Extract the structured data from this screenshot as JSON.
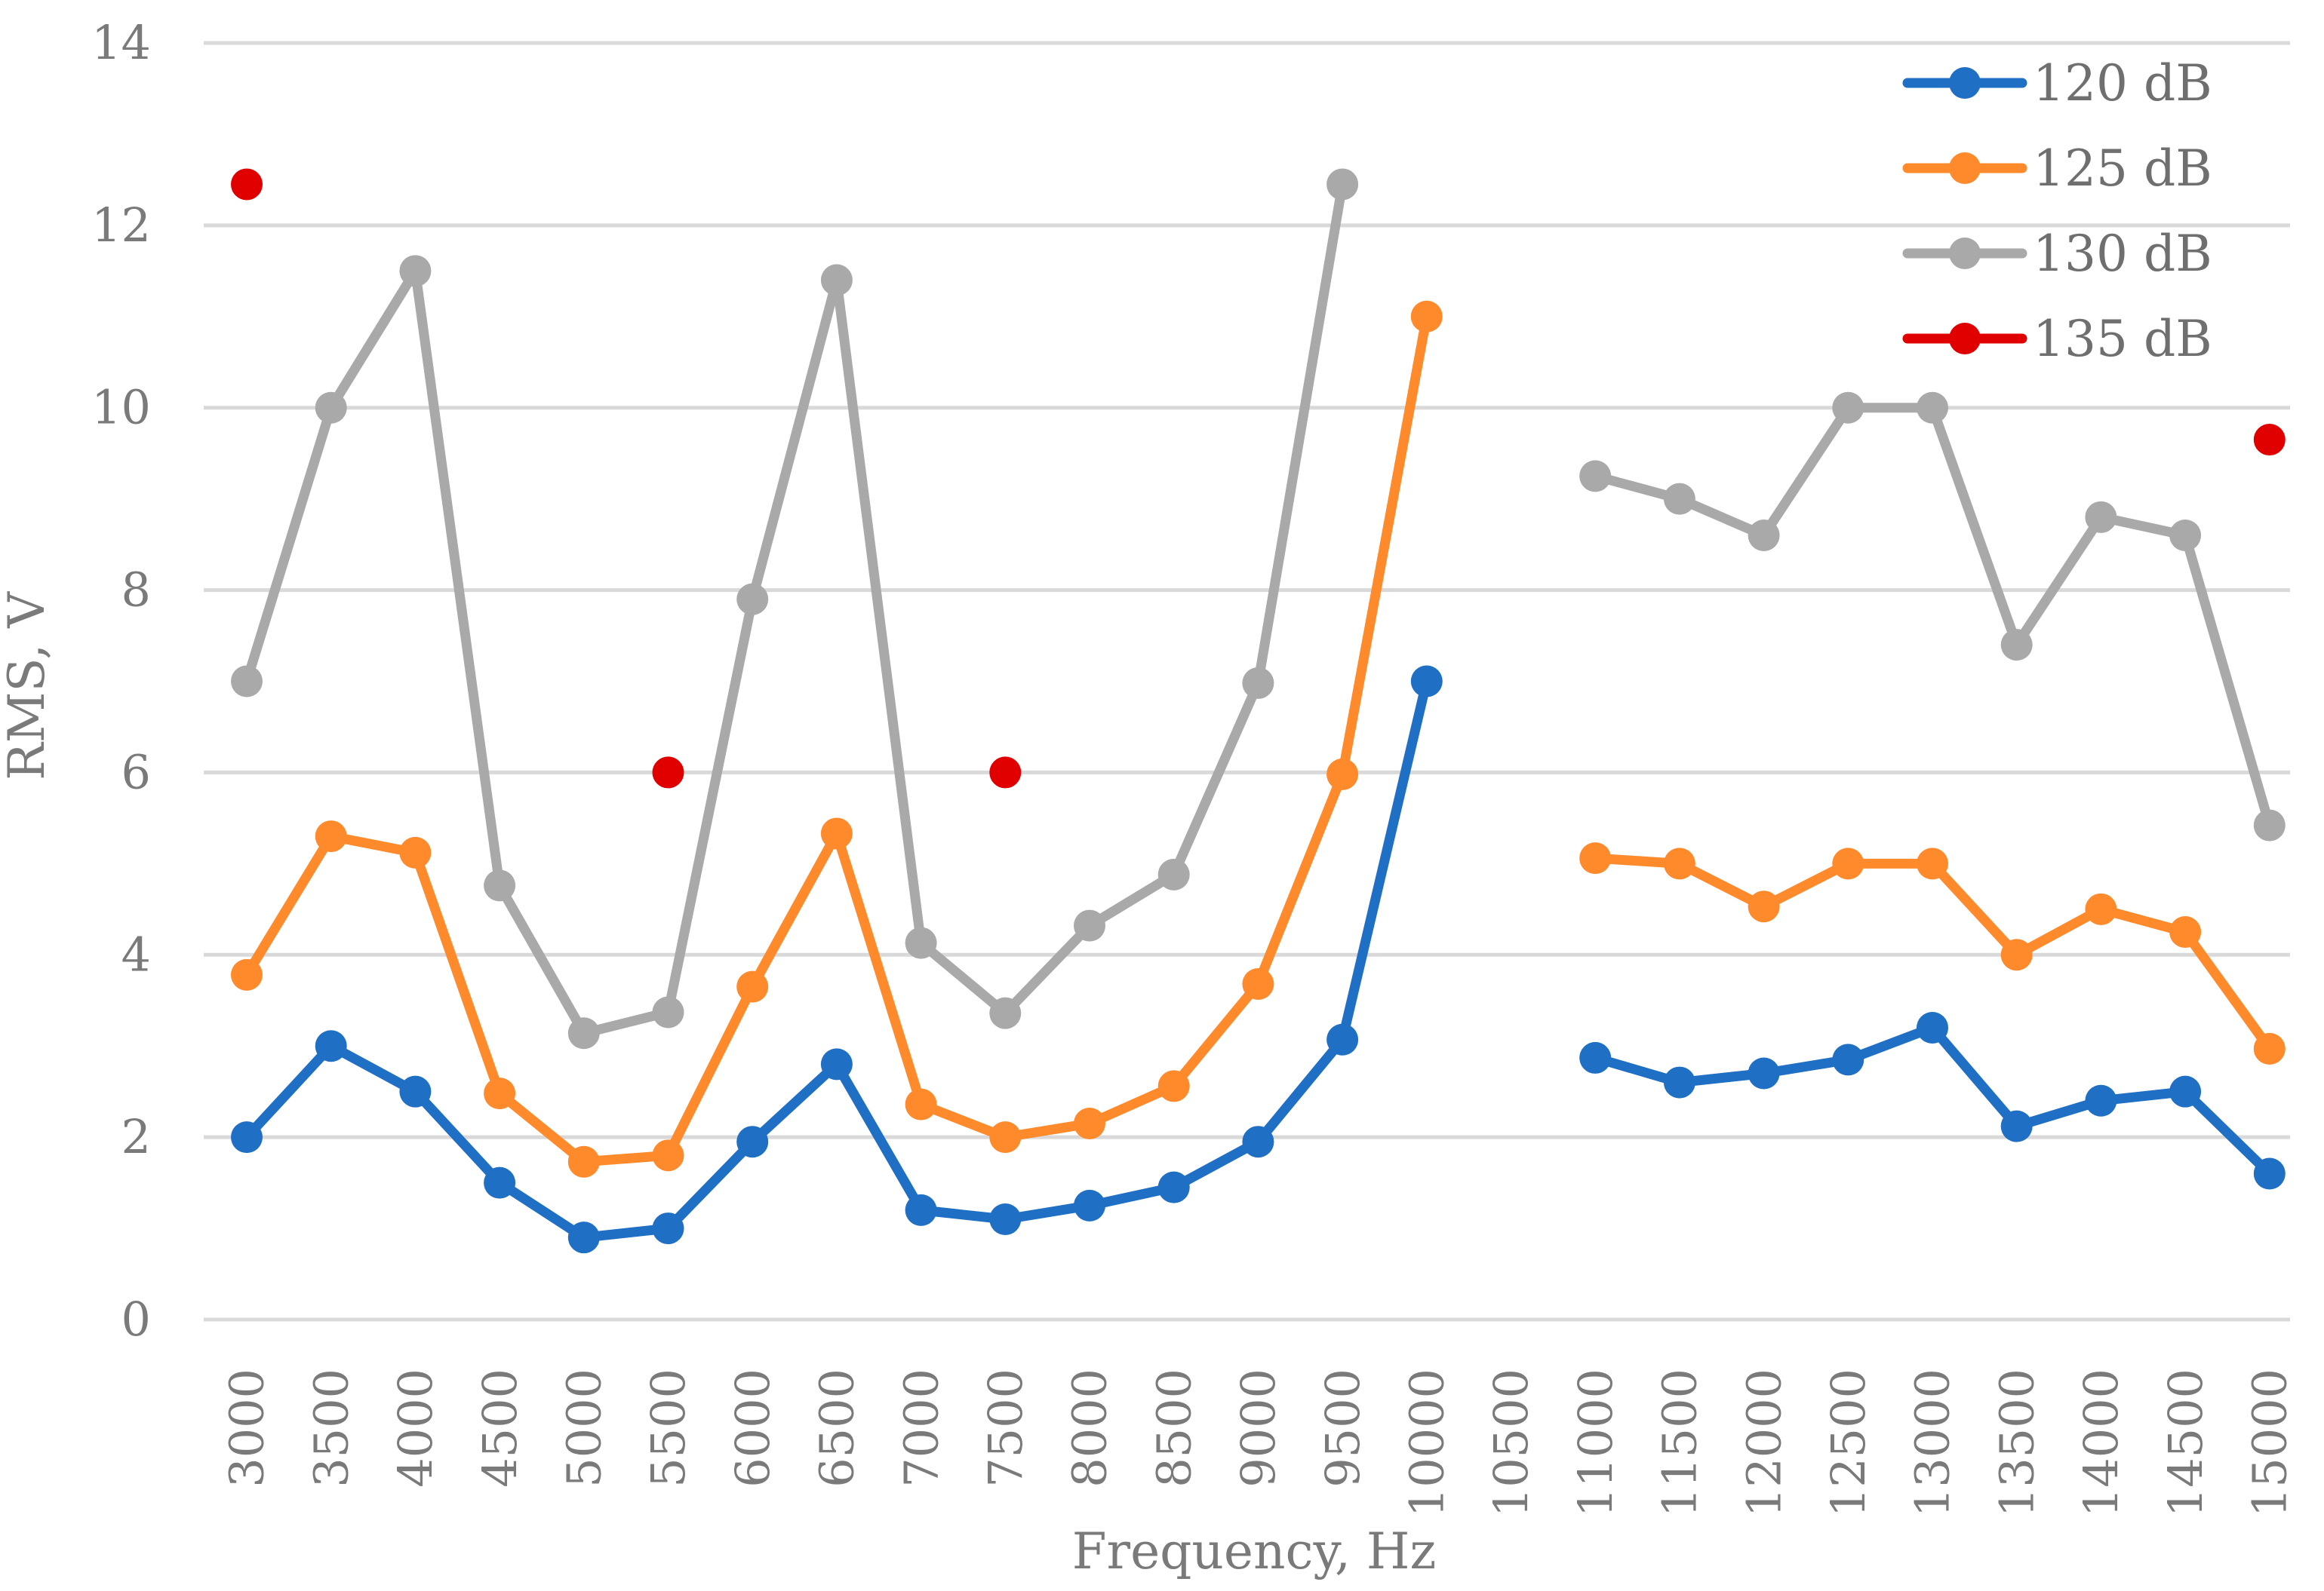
{
  "chart_data": {
    "type": "line",
    "title": "",
    "xlabel": "Frequency, Hz",
    "ylabel": "RMS, V",
    "ylim": [
      0,
      14
    ],
    "yticks": [
      0,
      2,
      4,
      6,
      8,
      10,
      12,
      14
    ],
    "grid": true,
    "legend_position": "top-right",
    "categories": [
      "3000",
      "3500",
      "4000",
      "4500",
      "5000",
      "5500",
      "6000",
      "6500",
      "7000",
      "7500",
      "8000",
      "8500",
      "9000",
      "9500",
      "10000",
      "10500",
      "11000",
      "11500",
      "12000",
      "12500",
      "13000",
      "13500",
      "14000",
      "14500",
      "15000"
    ],
    "series": [
      {
        "name": "120 dB",
        "color": "#1f6fc5",
        "values": [
          2.0,
          3.0,
          2.5,
          1.5,
          0.9,
          1.0,
          1.95,
          2.8,
          1.2,
          1.1,
          1.25,
          1.45,
          1.95,
          3.07,
          7.0,
          null,
          2.87,
          2.6,
          2.7,
          2.85,
          3.2,
          2.12,
          2.4,
          2.5,
          1.6
        ]
      },
      {
        "name": "125 dB",
        "color": "#ff8a2b",
        "values": [
          3.78,
          5.3,
          5.12,
          2.48,
          1.73,
          1.8,
          3.65,
          5.33,
          2.36,
          2.0,
          2.15,
          2.56,
          3.68,
          5.98,
          11.0,
          null,
          5.06,
          5.0,
          4.53,
          5.0,
          5.0,
          4.0,
          4.5,
          4.25,
          2.97
        ]
      },
      {
        "name": "130 dB",
        "color": "#a9a9a9",
        "values": [
          7.0,
          10.0,
          11.5,
          4.76,
          3.14,
          3.37,
          7.9,
          11.4,
          4.13,
          3.36,
          4.32,
          4.88,
          6.98,
          12.45,
          null,
          null,
          9.25,
          9.0,
          8.6,
          10.0,
          10.0,
          7.4,
          8.8,
          8.6,
          5.42
        ]
      },
      {
        "name": "135 dB",
        "color": "#e00000",
        "values": [
          12.45,
          null,
          null,
          null,
          null,
          6.0,
          null,
          null,
          null,
          6.0,
          null,
          null,
          null,
          null,
          null,
          null,
          null,
          null,
          null,
          null,
          null,
          null,
          null,
          null,
          9.65
        ]
      }
    ]
  }
}
